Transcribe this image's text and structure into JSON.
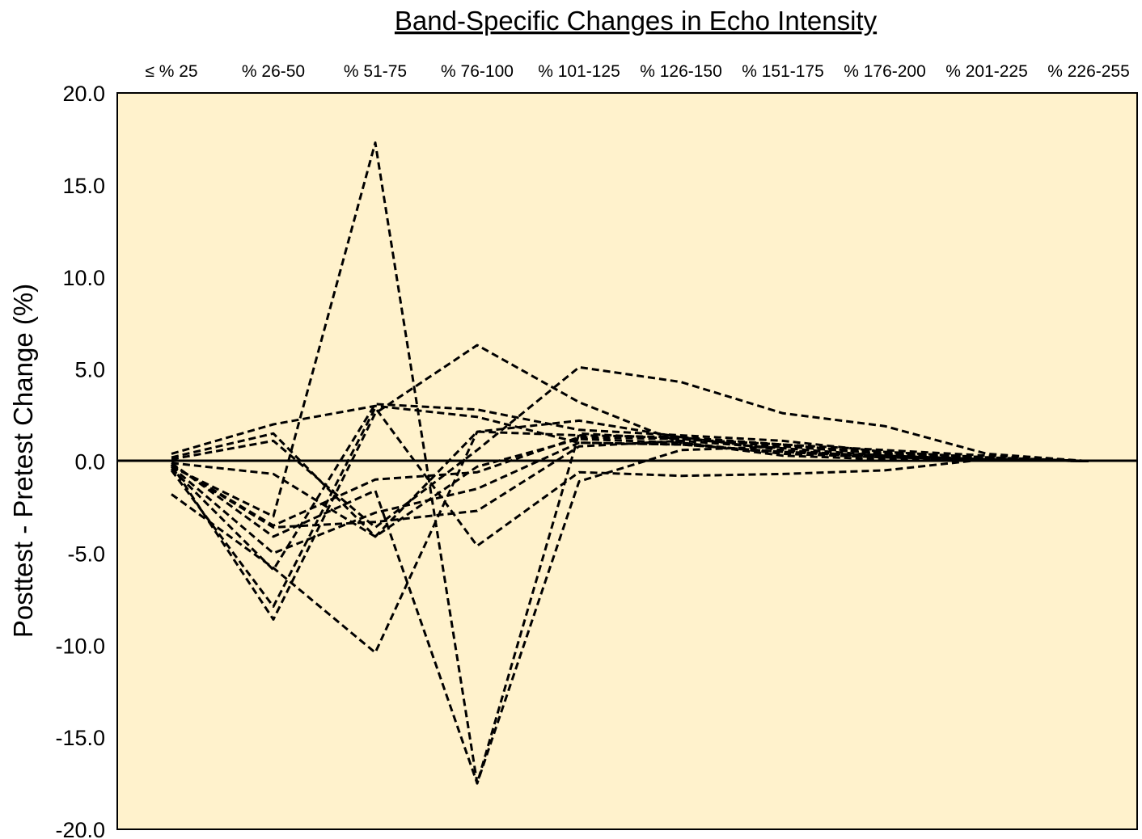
{
  "chart_data": {
    "type": "line",
    "title": "Band-Specific Changes in Echo Intensity",
    "xlabel": "",
    "ylabel": "Posttest - Pretest Change (%)",
    "categories": [
      "≤ % 25",
      "% 26-50",
      "% 51-75",
      "% 76-100",
      "% 101-125",
      "% 126-150",
      "% 151-175",
      "% 176-200",
      "% 201-225",
      "% 226-255"
    ],
    "ylim": [
      -20,
      20
    ],
    "yticks": [
      "20.0",
      "15.0",
      "10.0",
      "5.0",
      "0.0",
      "-5.0",
      "-10.0",
      "-15.0",
      "-20.0"
    ],
    "ytick_values": [
      20,
      15,
      10,
      5,
      0,
      -5,
      -10,
      -15,
      -20
    ],
    "legend": "none",
    "grid": false,
    "plot_background": "#fff2cc",
    "line_color": "#000000",
    "line_style": "dashed",
    "zero_line": true,
    "series": [
      {
        "values": [
          -0.3,
          -3.0,
          17.3,
          -17.5,
          1.5,
          1.2,
          0.9,
          0.6,
          0.3,
          0.0
        ]
      },
      {
        "values": [
          -0.2,
          -8.6,
          2.6,
          6.3,
          3.2,
          1.0,
          0.3,
          0.1,
          0.1,
          0.0
        ]
      },
      {
        "values": [
          -1.8,
          -5.8,
          -10.4,
          1.6,
          2.2,
          1.3,
          0.6,
          0.2,
          0.1,
          0.0
        ]
      },
      {
        "values": [
          -0.4,
          -5.9,
          3.1,
          2.8,
          1.7,
          1.4,
          1.1,
          0.5,
          0.2,
          0.0
        ]
      },
      {
        "values": [
          0.2,
          1.5,
          -4.1,
          1.6,
          1.4,
          1.3,
          0.9,
          0.4,
          0.2,
          0.0
        ]
      },
      {
        "values": [
          0.1,
          1.1,
          -3.6,
          0.6,
          5.1,
          4.3,
          2.6,
          1.9,
          0.4,
          0.0
        ]
      },
      {
        "values": [
          0.4,
          2.0,
          3.0,
          2.4,
          1.0,
          0.9,
          0.5,
          0.3,
          0.1,
          0.0
        ]
      },
      {
        "values": [
          -0.5,
          -7.9,
          2.9,
          -4.6,
          -0.6,
          -0.8,
          -0.7,
          -0.5,
          0.1,
          0.0
        ]
      },
      {
        "values": [
          -0.1,
          -0.7,
          -4.1,
          -0.3,
          1.2,
          1.0,
          0.4,
          0.2,
          0.1,
          0.0
        ]
      },
      {
        "values": [
          -0.2,
          -3.6,
          -3.3,
          -2.7,
          0.8,
          1.1,
          0.7,
          0.3,
          0.1,
          0.0
        ]
      },
      {
        "values": [
          -0.3,
          -5.0,
          -2.8,
          -1.5,
          1.0,
          0.9,
          0.5,
          0.2,
          0.1,
          0.0
        ]
      },
      {
        "values": [
          -0.1,
          -4.1,
          -1.6,
          -17.5,
          -1.1,
          0.6,
          0.8,
          0.5,
          0.2,
          0.0
        ]
      },
      {
        "values": [
          -0.2,
          -3.5,
          -1.0,
          -0.6,
          1.3,
          1.2,
          0.8,
          0.4,
          0.2,
          0.0
        ]
      }
    ]
  }
}
